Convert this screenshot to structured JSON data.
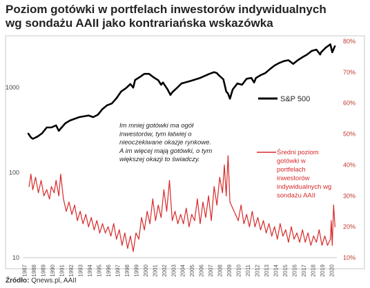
{
  "header": {
    "title_line1": "Poziom gotówki w portfelach inwestorów indywidualnych",
    "title_line2": "wg sondażu AAII jako kontrariańska wskazówka"
  },
  "footer": {
    "source_label": "Źródło:",
    "source_value": "Qnews.pl, AAII"
  },
  "chart_data": {
    "type": "line",
    "x_tick_labels": [
      "1987",
      "1988",
      "1989",
      "1990",
      "1991",
      "1992",
      "1993",
      "1994",
      "1995",
      "1996",
      "1997",
      "1998",
      "1999",
      "2000",
      "2001",
      "2002",
      "2003",
      "2004",
      "2005",
      "2006",
      "2007",
      "2008",
      "2009",
      "2010",
      "2011",
      "2012",
      "2013",
      "2014",
      "2015",
      "2016",
      "2017",
      "2018",
      "2019",
      "2020"
    ],
    "y_left": {
      "scale": "log",
      "range": [
        10,
        3500
      ],
      "tick_labels": [
        "10",
        "100",
        "1000"
      ],
      "tick_values": [
        10,
        100,
        1000
      ]
    },
    "y_right": {
      "scale": "linear",
      "range": [
        10,
        80
      ],
      "tick_labels": [
        "10%",
        "20%",
        "30%",
        "40%",
        "50%",
        "60%",
        "70%",
        "80%"
      ],
      "tick_values": [
        10,
        20,
        30,
        40,
        50,
        60,
        70,
        80
      ]
    },
    "grid": false,
    "annotations": {
      "main_lines": [
        "Im mniej gotówki ma ogół",
        "inwestorów, tym łatwiej o",
        "nieoczekiwane okazje rynkowe.",
        "A im więcej mają gotówki, o tym",
        "większej okazji to świadczy."
      ]
    },
    "series": [
      {
        "name": "S&P 500",
        "axis": "left",
        "color": "#000000",
        "x": [
          1987.5,
          1987.8,
          1988.0,
          1988.5,
          1989.0,
          1989.5,
          1990.0,
          1990.5,
          1990.8,
          1991.0,
          1991.5,
          1992.0,
          1993.0,
          1994.0,
          1994.5,
          1995.0,
          1995.5,
          1996.0,
          1996.5,
          1997.0,
          1997.5,
          1998.0,
          1998.5,
          1998.8,
          1999.0,
          1999.5,
          2000.0,
          2000.5,
          2001.0,
          2001.5,
          2001.8,
          2002.0,
          2002.5,
          2002.8,
          2003.0,
          2003.5,
          2004.0,
          2005.0,
          2006.0,
          2007.0,
          2007.5,
          2007.8,
          2008.0,
          2008.5,
          2008.8,
          2009.0,
          2009.2,
          2009.5,
          2010.0,
          2010.5,
          2011.0,
          2011.5,
          2011.8,
          2012.0,
          2012.5,
          2013.0,
          2013.5,
          2014.0,
          2014.5,
          2015.0,
          2015.5,
          2016.0,
          2016.5,
          2017.0,
          2017.5,
          2018.0,
          2018.5,
          2018.9,
          2019.0,
          2019.5,
          2020.0,
          2020.2,
          2020.5
        ],
        "values": [
          290,
          260,
          250,
          265,
          290,
          340,
          340,
          360,
          310,
          330,
          380,
          410,
          450,
          470,
          450,
          480,
          560,
          620,
          650,
          750,
          900,
          980,
          1100,
          1000,
          1230,
          1330,
          1450,
          1450,
          1320,
          1220,
          1080,
          1150,
          950,
          820,
          880,
          990,
          1120,
          1200,
          1300,
          1450,
          1520,
          1480,
          1400,
          1250,
          900,
          850,
          740,
          950,
          1120,
          1080,
          1270,
          1300,
          1150,
          1300,
          1400,
          1480,
          1650,
          1820,
          1950,
          2050,
          2100,
          1900,
          2100,
          2280,
          2450,
          2700,
          2800,
          2450,
          2600,
          2950,
          3230,
          2600,
          3100
        ]
      },
      {
        "name": "Średni poziom gotówki w portfelach inwestorów indywidualnych wg sondażu AAII",
        "axis": "right",
        "color": "#d62828",
        "x": [
          1987.6,
          1987.8,
          1988.0,
          1988.3,
          1988.6,
          1988.9,
          1989.2,
          1989.5,
          1989.8,
          1990.0,
          1990.3,
          1990.5,
          1990.8,
          1991.0,
          1991.3,
          1991.6,
          1991.9,
          1992.2,
          1992.5,
          1992.8,
          1993.1,
          1993.4,
          1993.7,
          1994.0,
          1994.3,
          1994.6,
          1994.9,
          1995.2,
          1995.5,
          1995.8,
          1996.1,
          1996.4,
          1996.7,
          1997.0,
          1997.3,
          1997.6,
          1997.9,
          1998.2,
          1998.5,
          1998.8,
          1999.1,
          1999.4,
          1999.7,
          2000.0,
          2000.3,
          2000.6,
          2000.9,
          2001.2,
          2001.5,
          2001.8,
          2002.1,
          2002.4,
          2002.7,
          2003.0,
          2003.3,
          2003.6,
          2003.9,
          2004.2,
          2004.5,
          2004.8,
          2005.1,
          2005.4,
          2005.7,
          2006.0,
          2006.3,
          2006.6,
          2006.9,
          2007.2,
          2007.5,
          2007.8,
          2008.1,
          2008.4,
          2008.6,
          2008.8,
          2009.0,
          2009.2,
          2009.5,
          2009.8,
          2010.1,
          2010.4,
          2010.7,
          2011.0,
          2011.3,
          2011.6,
          2011.9,
          2012.2,
          2012.5,
          2012.8,
          2013.1,
          2013.4,
          2013.7,
          2014.0,
          2014.3,
          2014.6,
          2014.9,
          2015.2,
          2015.5,
          2015.8,
          2016.1,
          2016.4,
          2016.7,
          2017.0,
          2017.3,
          2017.6,
          2017.9,
          2018.2,
          2018.5,
          2018.8,
          2019.1,
          2019.4,
          2019.7,
          2020.0,
          2020.1,
          2020.2,
          2020.35,
          2020.5
        ],
        "values": [
          33,
          37,
          32,
          36,
          31,
          35,
          30,
          32,
          29,
          33,
          31,
          35,
          30,
          37,
          29,
          25,
          28,
          24,
          27,
          22,
          25,
          21,
          24,
          20,
          23,
          19,
          22,
          18,
          21,
          18,
          20,
          17,
          21,
          16,
          19,
          14,
          18,
          13,
          17,
          12,
          18,
          16,
          23,
          19,
          25,
          21,
          29,
          22,
          27,
          23,
          32,
          25,
          35,
          22,
          25,
          21,
          24,
          21,
          26,
          20,
          24,
          22,
          29,
          21,
          28,
          23,
          30,
          22,
          33,
          27,
          36,
          31,
          40,
          30,
          43,
          28,
          26,
          24,
          22,
          27,
          21,
          24,
          20,
          25,
          20,
          23,
          19,
          22,
          18,
          21,
          17,
          20,
          16,
          21,
          17,
          19,
          15,
          20,
          16,
          18,
          15,
          19,
          15,
          18,
          14,
          17,
          15,
          19,
          14,
          17,
          14,
          16,
          22,
          14,
          27,
          20
        ]
      }
    ]
  }
}
